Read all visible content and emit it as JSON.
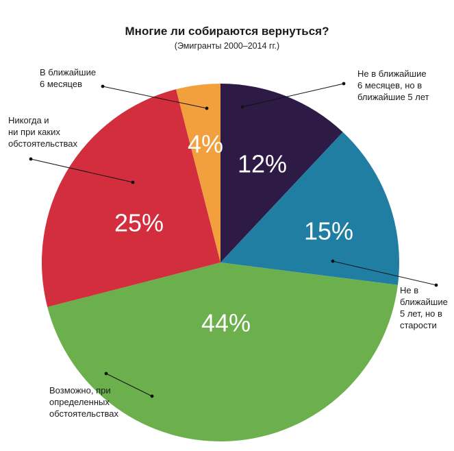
{
  "chart_data": {
    "type": "pie",
    "title": "Многие ли собираются вернуться?",
    "subtitle": "(Эмигранты 2000–2014 гг.)",
    "slices": [
      {
        "label": "Не в ближайшие 6 месяцев, но в ближайшие 5 лет",
        "value": 12,
        "value_label": "12%",
        "color": "#2d1a45"
      },
      {
        "label": "Не в ближайшие 5 лет, но в старости",
        "value": 15,
        "value_label": "15%",
        "color": "#207ea3"
      },
      {
        "label": "Возможно, при определенных обстоятельствах",
        "value": 44,
        "value_label": "44%",
        "color": "#6bb04c"
      },
      {
        "label": "Никогда и ни при каких обстоятельствах",
        "value": 25,
        "value_label": "25%",
        "color": "#d22e3e"
      },
      {
        "label": "В ближайшие 6 месяцев",
        "value": 4,
        "value_label": "4%",
        "color": "#f2a03d"
      }
    ],
    "annotations": [
      {
        "lines": [
          "Не в ближайшие",
          "6 месяцев, но в",
          "ближайшие 5 лет"
        ]
      },
      {
        "lines": [
          "Не в",
          "ближайшие",
          "5 лет, но в",
          "старости"
        ]
      },
      {
        "lines": [
          "Возможно, при",
          "определенных",
          "обстоятельствах"
        ]
      },
      {
        "lines": [
          "Никогда и",
          "ни при каких",
          "обстоятельствах"
        ]
      },
      {
        "lines": [
          "В ближайшие",
          "6 месяцев"
        ]
      }
    ]
  }
}
